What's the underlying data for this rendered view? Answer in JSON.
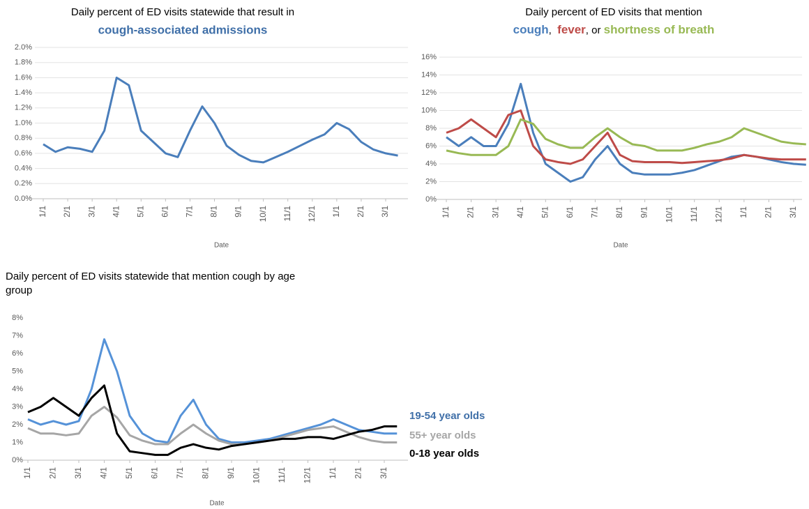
{
  "chart_data": [
    {
      "type": "line",
      "title": "Daily percent of ED visits statewide that result in",
      "subtitle": "cough-associated admissions",
      "subtitle_color": "#3f6fa8",
      "x_label": "Date",
      "categories": [
        "1/1",
        null,
        "2/1",
        null,
        "3/1",
        null,
        "4/1",
        null,
        "5/1",
        null,
        "6/1",
        null,
        "7/1",
        null,
        "8/1",
        null,
        "9/1",
        null,
        "10/1",
        null,
        "11/1",
        null,
        "12/1",
        null,
        "1/1",
        null,
        "2/1",
        null,
        "3/1",
        null
      ],
      "ylim": [
        0,
        2.0
      ],
      "yticks": [
        {
          "value": 0,
          "label": "0.0%"
        },
        {
          "value": 0.2,
          "label": "0.2%"
        },
        {
          "value": 0.4,
          "label": "0.4%"
        },
        {
          "value": 0.6,
          "label": "0.6%"
        },
        {
          "value": 0.8,
          "label": "0.8%"
        },
        {
          "value": 1.0,
          "label": "1.0%"
        },
        {
          "value": 1.2,
          "label": "1.2%"
        },
        {
          "value": 1.4,
          "label": "1.4%"
        },
        {
          "value": 1.6,
          "label": "1.6%"
        },
        {
          "value": 1.8,
          "label": "1.8%"
        },
        {
          "value": 2.0,
          "label": "2.0%"
        }
      ],
      "grid": true,
      "series": [
        {
          "name": "cough-associated admissions",
          "color": "#4a7ebb",
          "values": [
            0.72,
            0.62,
            0.68,
            0.66,
            0.62,
            0.9,
            1.6,
            1.5,
            0.9,
            0.75,
            0.6,
            0.55,
            0.9,
            1.22,
            1.0,
            0.7,
            0.58,
            0.5,
            0.48,
            0.55,
            0.62,
            0.7,
            0.78,
            0.85,
            1.0,
            0.92,
            0.75,
            0.65,
            0.6,
            0.57
          ]
        }
      ]
    },
    {
      "type": "line",
      "title": "Daily percent of ED visits that mention",
      "title_joiners": [
        ",  ",
        ", or "
      ],
      "x_label": "Date",
      "categories": [
        "1/1",
        null,
        "2/1",
        null,
        "3/1",
        null,
        "4/1",
        null,
        "5/1",
        null,
        "6/1",
        null,
        "7/1",
        null,
        "8/1",
        null,
        "9/1",
        null,
        "10/1",
        null,
        "11/1",
        null,
        "12/1",
        null,
        "1/1",
        null,
        "2/1",
        null,
        "3/1",
        null
      ],
      "ylim": [
        0,
        16
      ],
      "yticks": [
        {
          "value": 0,
          "label": "0%"
        },
        {
          "value": 2,
          "label": "2%"
        },
        {
          "value": 4,
          "label": "4%"
        },
        {
          "value": 6,
          "label": "6%"
        },
        {
          "value": 8,
          "label": "8%"
        },
        {
          "value": 10,
          "label": "10%"
        },
        {
          "value": 12,
          "label": "12%"
        },
        {
          "value": 14,
          "label": "14%"
        },
        {
          "value": 16,
          "label": "16%"
        }
      ],
      "grid": true,
      "series": [
        {
          "name": "cough",
          "color": "#4a7ebb",
          "values": [
            7,
            6,
            7,
            6,
            6,
            8.5,
            13,
            7.5,
            4,
            3,
            2,
            2.5,
            4.5,
            6,
            4,
            3,
            2.8,
            2.8,
            2.8,
            3,
            3.3,
            3.8,
            4.3,
            4.8,
            5,
            4.8,
            4.5,
            4.2,
            4,
            3.9
          ]
        },
        {
          "name": "fever",
          "color": "#be4b48",
          "values": [
            7.5,
            8,
            9,
            8,
            7,
            9.5,
            10,
            6,
            4.5,
            4.2,
            4,
            4.5,
            6,
            7.5,
            5,
            4.3,
            4.2,
            4.2,
            4.2,
            4.1,
            4.2,
            4.3,
            4.4,
            4.6,
            5,
            4.8,
            4.6,
            4.5,
            4.5,
            4.5
          ]
        },
        {
          "name": "shortness of breath",
          "color": "#98b954",
          "values": [
            5.5,
            5.2,
            5,
            5,
            5,
            6,
            9,
            8.5,
            6.8,
            6.2,
            5.8,
            5.8,
            7,
            8,
            7,
            6.2,
            6,
            5.5,
            5.5,
            5.5,
            5.8,
            6.2,
            6.5,
            7,
            8,
            7.5,
            7,
            6.5,
            6.3,
            6.2
          ]
        }
      ]
    },
    {
      "type": "line",
      "title": [
        "Daily percent of ED visits statewide that mention cough by age",
        "group"
      ],
      "x_label": "Date",
      "categories": [
        "1/1",
        null,
        "2/1",
        null,
        "3/1",
        null,
        "4/1",
        null,
        "5/1",
        null,
        "6/1",
        null,
        "7/1",
        null,
        "8/1",
        null,
        "9/1",
        null,
        "10/1",
        null,
        "11/1",
        null,
        "12/1",
        null,
        "1/1",
        null,
        "2/1",
        null,
        "3/1",
        null
      ],
      "ylim": [
        0,
        8
      ],
      "yticks": [
        {
          "value": 0,
          "label": "0%"
        },
        {
          "value": 1,
          "label": "1%"
        },
        {
          "value": 2,
          "label": "2%"
        },
        {
          "value": 3,
          "label": "3%"
        },
        {
          "value": 4,
          "label": "4%"
        },
        {
          "value": 5,
          "label": "5%"
        },
        {
          "value": 6,
          "label": "6%"
        },
        {
          "value": 7,
          "label": "7%"
        },
        {
          "value": 8,
          "label": "8%"
        }
      ],
      "grid": false,
      "series": [
        {
          "name": "19-54 year olds",
          "color": "#5592d8",
          "label_color": "#3f6fa8",
          "values": [
            2.3,
            2,
            2.2,
            2,
            2.2,
            4,
            6.8,
            5,
            2.5,
            1.5,
            1.1,
            1,
            2.5,
            3.4,
            2,
            1.2,
            1,
            1,
            1.1,
            1.2,
            1.4,
            1.6,
            1.8,
            2,
            2.3,
            2,
            1.7,
            1.6,
            1.5,
            1.5
          ]
        },
        {
          "name": "55+ year olds",
          "color": "#a6a6a6",
          "label_color": "#a6a6a6",
          "values": [
            1.8,
            1.5,
            1.5,
            1.4,
            1.5,
            2.5,
            3,
            2.4,
            1.4,
            1.1,
            0.9,
            0.9,
            1.5,
            2,
            1.5,
            1.1,
            0.9,
            0.9,
            1,
            1.1,
            1.3,
            1.5,
            1.7,
            1.8,
            1.9,
            1.6,
            1.3,
            1.1,
            1,
            1
          ]
        },
        {
          "name": "0-18 year olds",
          "color": "#000000",
          "label_color": "#000000",
          "values": [
            2.7,
            3,
            3.5,
            3,
            2.5,
            3.5,
            4.2,
            1.5,
            0.5,
            0.4,
            0.3,
            0.3,
            0.7,
            0.9,
            0.7,
            0.6,
            0.8,
            0.9,
            1,
            1.1,
            1.2,
            1.2,
            1.3,
            1.3,
            1.2,
            1.4,
            1.6,
            1.7,
            1.9,
            1.9
          ]
        }
      ]
    }
  ]
}
